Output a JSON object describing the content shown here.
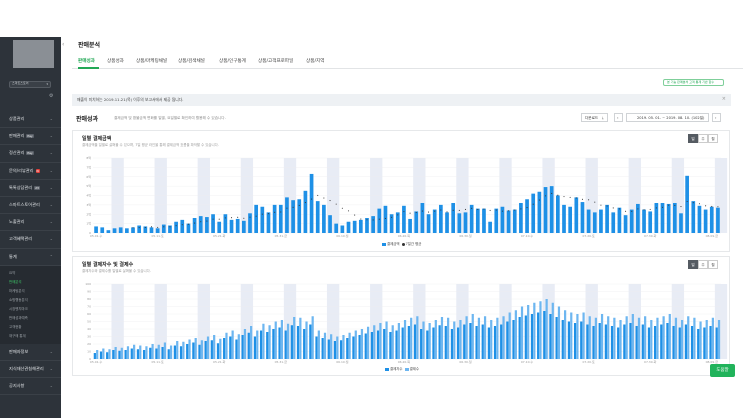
{
  "sidebar": {
    "store_select": "스마트스토어",
    "items": [
      {
        "label": "상품관리",
        "badge": ""
      },
      {
        "label": "판매관리",
        "badge": "Pay"
      },
      {
        "label": "정산관리",
        "badge": "Pay"
      },
      {
        "label": "문의/리뷰관리",
        "badge": "N"
      },
      {
        "label": "톡톡상담관리",
        "badge": "23"
      },
      {
        "label": "스마트스토어관리",
        "badge": ""
      },
      {
        "label": "노출관리",
        "badge": ""
      },
      {
        "label": "고객혜택관리",
        "badge": ""
      },
      {
        "label": "통계",
        "badge": ""
      }
    ],
    "sub_items": [
      "요약",
      "판매분석",
      "마케팅분석",
      "쇼핑행동분석",
      "시장벤치마크",
      "판매성과예측",
      "고객현황",
      "재구매 통계"
    ],
    "bottom_items": [
      "판매자정보",
      "지식재산권침해관리",
      "공지사항"
    ]
  },
  "page": {
    "title": "판매분석",
    "tabs": [
      "판매성과",
      "상품성과",
      "상품/마케팅채널",
      "상품/검색채널",
      "상품/인구통계",
      "상품/고객프로파일",
      "상품/지역"
    ],
    "active_tab": 0,
    "compare_button": "본 기능 판매분석 고객 통계 기반 함수",
    "notice": "매출이 미치하는 2019.11.21(목) 이후의 보고서에서 제공 됩니다.",
    "notice_close": "×",
    "section_title": "판매성과",
    "section_desc": "결제금액 및 환불금액 변화를 일별, 요일별로 확인하여 활용해 수 있습니다.",
    "download": "다운로드",
    "date_range": "2019. 05. 01. ~ 2019. 08. 10. (102일)",
    "help_button": "도움말"
  },
  "segments": [
    "일",
    "주",
    "월"
  ],
  "panels": [
    {
      "title": "일별 결제금액",
      "subtitle": "결제금액을 일별로 살펴볼 수 있으며, 7일 평균 라인을 통해 결제금액 흐름을 파악할 수 있습니다.",
      "legend": [
        "결제금액",
        "7일간 평균"
      ]
    },
    {
      "title": "일별 결제자수 및 결제수",
      "subtitle": "결제자수와 결제수를 일별로 살펴볼 수 있습니다.",
      "legend": [
        "결제자수",
        "결제수"
      ]
    }
  ],
  "colors": {
    "primary": "#1e90e6",
    "light": "#6db6f0",
    "weekend": "#e8ecf5",
    "line": "#333333",
    "accent": "#21a855"
  },
  "chart_data": [
    {
      "type": "bar",
      "title": "일별 결제금액",
      "x_range": [
        "2019-05-01",
        "2019-08-10"
      ],
      "ylim": [
        0,
        8
      ],
      "y_ticks": [
        "8억",
        "7억",
        "6억",
        "5억",
        "4억",
        "3억",
        "2억",
        "1억",
        "0"
      ],
      "x_ticks": [
        "05.01.수",
        "05.11.토",
        "05.21.화",
        "05.31.금",
        "06.10.월",
        "06.20.목",
        "06.30.일",
        "07.10.수",
        "07.20.토",
        "07.30.화",
        "08.09.금"
      ],
      "series": [
        {
          "name": "결제금액",
          "values": [
            0.7,
            0.6,
            0.3,
            0.5,
            0.6,
            0.5,
            0.6,
            0.8,
            0.7,
            0.6,
            0.5,
            0.9,
            0.8,
            1.2,
            1.4,
            1.0,
            1.6,
            1.8,
            1.7,
            2.0,
            1.2,
            2.0,
            1.4,
            1.5,
            1.3,
            2.1,
            3.0,
            2.8,
            2.2,
            3.0,
            3.0,
            3.8,
            3.5,
            3.6,
            4.5,
            6.3,
            3.4,
            3.0,
            1.9,
            1.0,
            0.8,
            1.2,
            1.3,
            1.4,
            1.6,
            1.8,
            2.6,
            2.9,
            2.0,
            2.2,
            2.9,
            1.5,
            2.3,
            3.2,
            2.0,
            2.5,
            3.0,
            2.2,
            3.2,
            2.1,
            2.2,
            3.0,
            2.6,
            2.6,
            1.2,
            2.6,
            2.8,
            2.4,
            2.5,
            3.2,
            3.6,
            4.2,
            4.4,
            4.9,
            5.0,
            4.0,
            3.0,
            2.8,
            3.8,
            3.3,
            2.5,
            2.2,
            2.5,
            3.0,
            2.2,
            2.7,
            1.9,
            2.5,
            3.1,
            2.5,
            2.3,
            3.2,
            3.2,
            3.1,
            3.2,
            2.1,
            6.1,
            3.4,
            2.9,
            2.5,
            2.8,
            2.7
          ]
        },
        {
          "name": "7일간 평균",
          "values": [
            null,
            null,
            null,
            null,
            null,
            null,
            0.56,
            0.57,
            0.59,
            0.66,
            0.6,
            0.66,
            0.66,
            0.78,
            0.88,
            0.94,
            1.06,
            1.2,
            1.27,
            1.48,
            1.47,
            1.61,
            1.63,
            1.67,
            1.57,
            1.69,
            1.79,
            2.01,
            2.06,
            2.21,
            2.24,
            2.65,
            2.74,
            2.94,
            3.25,
            3.62,
            4.01,
            3.73,
            3.46,
            3.08,
            2.64,
            2.36,
            1.91,
            1.49,
            1.41,
            1.39,
            1.47,
            1.55,
            1.67,
            1.93,
            2.28,
            2.11,
            2.18,
            2.34,
            2.23,
            2.33,
            2.45,
            2.25,
            2.42,
            2.41,
            2.51,
            2.63,
            2.51,
            2.55,
            2.41,
            2.45,
            2.33,
            2.37,
            2.45,
            2.57,
            2.71,
            3.07,
            3.51,
            3.96,
            4.22,
            4.03,
            3.88,
            3.8,
            3.74,
            3.59,
            3.54,
            3.29,
            2.97,
            2.88,
            2.67,
            2.57,
            2.31,
            2.31,
            2.57,
            2.47,
            2.52,
            2.67,
            2.74,
            2.97,
            2.94,
            2.82,
            3.36,
            3.23,
            3.12,
            2.9,
            2.83,
            2.8
          ]
        }
      ]
    },
    {
      "type": "bar",
      "title": "일별 결제자수 및 결제수",
      "x_range": [
        "2019-05-01",
        "2019-08-10"
      ],
      "ylim": [
        0,
        100
      ],
      "y_ticks": [
        "100",
        "90",
        "80",
        "70",
        "60",
        "50",
        "40",
        "30",
        "20",
        "10",
        "0"
      ],
      "x_ticks": [
        "05.01.수",
        "05.11.토",
        "05.21.화",
        "05.31.금",
        "06.10.월",
        "06.20.목",
        "06.30.일",
        "07.10.수",
        "07.20.토",
        "07.30.화",
        "08.09.금"
      ],
      "series": [
        {
          "name": "결제자수",
          "values": [
            8,
            10,
            9,
            12,
            11,
            12,
            14,
            13,
            12,
            15,
            14,
            16,
            13,
            18,
            17,
            20,
            22,
            19,
            24,
            25,
            21,
            28,
            30,
            26,
            32,
            35,
            30,
            38,
            36,
            40,
            42,
            38,
            45,
            44,
            40,
            46,
            30,
            28,
            26,
            24,
            25,
            28,
            30,
            32,
            34,
            36,
            38,
            40,
            36,
            38,
            42,
            44,
            46,
            40,
            38,
            42,
            45,
            44,
            40,
            42,
            46,
            48,
            44,
            46,
            42,
            44,
            46,
            50,
            52,
            56,
            58,
            60,
            62,
            64,
            60,
            56,
            52,
            50,
            48,
            50,
            46,
            44,
            48,
            46,
            44,
            42,
            46,
            48,
            44,
            46,
            42,
            44,
            46,
            48,
            44,
            42,
            46,
            44,
            40,
            42,
            44,
            42
          ]
        },
        {
          "name": "결제수",
          "values": [
            12,
            14,
            13,
            16,
            15,
            17,
            19,
            18,
            17,
            20,
            19,
            22,
            18,
            24,
            23,
            26,
            28,
            25,
            30,
            32,
            27,
            35,
            38,
            33,
            40,
            44,
            38,
            47,
            45,
            50,
            52,
            47,
            56,
            55,
            50,
            57,
            38,
            35,
            33,
            30,
            32,
            35,
            38,
            40,
            43,
            45,
            48,
            50,
            45,
            48,
            52,
            55,
            57,
            50,
            48,
            52,
            56,
            55,
            50,
            52,
            57,
            60,
            55,
            57,
            52,
            55,
            57,
            62,
            65,
            70,
            72,
            75,
            77,
            80,
            75,
            70,
            65,
            62,
            60,
            62,
            57,
            55,
            60,
            57,
            55,
            52,
            57,
            60,
            55,
            57,
            52,
            55,
            57,
            60,
            55,
            52,
            57,
            55,
            50,
            52,
            55,
            52
          ]
        }
      ]
    }
  ]
}
